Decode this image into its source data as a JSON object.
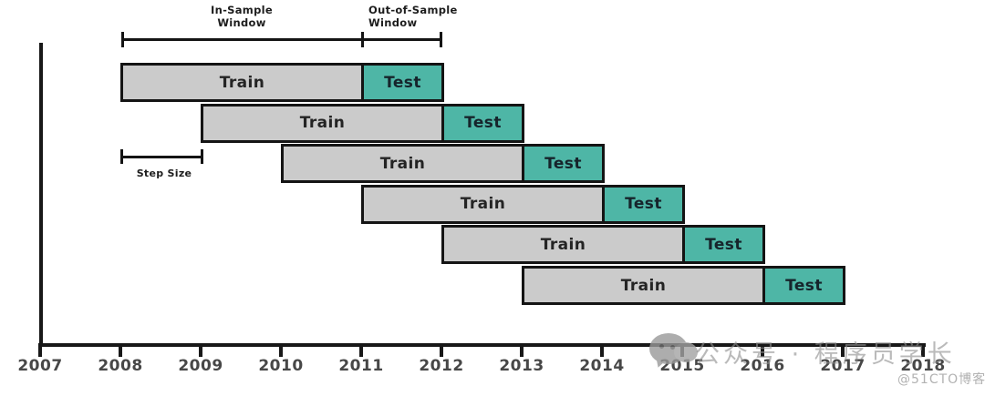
{
  "annotations": {
    "in_sample_line1": "In-Sample",
    "in_sample_line2": "Window",
    "out_of_sample_line1": "Out-of-Sample",
    "out_of_sample_line2": "Window",
    "step_size": "Step Size"
  },
  "chart_data": {
    "type": "gantt",
    "axis_years": [
      2007,
      2008,
      2009,
      2010,
      2011,
      2012,
      2013,
      2014,
      2015,
      2016,
      2017,
      2018
    ],
    "rows": [
      {
        "train_label": "Train",
        "train_start": 2008,
        "train_end": 2011,
        "test_label": "Test",
        "test_end": 2012
      },
      {
        "train_label": "Train",
        "train_start": 2009,
        "train_end": 2012,
        "test_label": "Test",
        "test_end": 2013
      },
      {
        "train_label": "Train",
        "train_start": 2010,
        "train_end": 2013,
        "test_label": "Test",
        "test_end": 2014
      },
      {
        "train_label": "Train",
        "train_start": 2011,
        "train_end": 2014,
        "test_label": "Test",
        "test_end": 2015
      },
      {
        "train_label": "Train",
        "train_start": 2012,
        "train_end": 2015,
        "test_label": "Test",
        "test_end": 2016
      },
      {
        "train_label": "Train",
        "train_start": 2013,
        "train_end": 2016,
        "test_label": "Test",
        "test_end": 2017
      }
    ]
  },
  "colors": {
    "train_fill": "#cbcbcb",
    "test_fill": "#4eb6a6",
    "bar_border": "#141414",
    "axis": "#181818"
  },
  "watermark": {
    "brand_text": "公众号 · 程序员学长",
    "site_credit": "@51CTO博客"
  }
}
